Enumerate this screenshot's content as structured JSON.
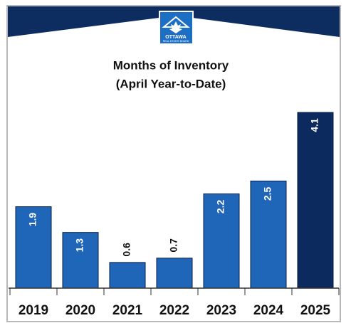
{
  "chart_data": {
    "type": "bar",
    "title": "Months of Inventory",
    "subtitle": "(April Year-to-Date)",
    "logo": {
      "line1": "OTTAWA",
      "line2": "REAL ESTATE BOARD"
    },
    "categories": [
      "2019",
      "2020",
      "2021",
      "2022",
      "2023",
      "2024",
      "2025"
    ],
    "values": [
      1.9,
      1.3,
      0.6,
      0.7,
      2.2,
      2.5,
      4.1
    ],
    "colors": [
      "#1f66b8",
      "#1f66b8",
      "#1f66b8",
      "#1f66b8",
      "#1f66b8",
      "#1f66b8",
      "#0c2a5e"
    ]
  }
}
